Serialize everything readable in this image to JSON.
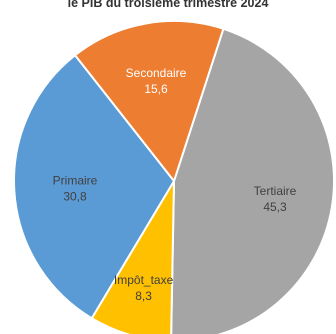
{
  "chart_data": {
    "type": "pie",
    "title": "le PIB du troisième trimestre 2024",
    "legend": "none",
    "slices": [
      {
        "name": "Tertiaire",
        "value_label": "45,3",
        "value": 45.3,
        "color": "#a5a5a5",
        "label_color": "#404040"
      },
      {
        "name": "Impôt_taxe",
        "value_label": "8,3",
        "value": 8.3,
        "color": "#ffc000",
        "label_color": "#404040"
      },
      {
        "name": "Primaire",
        "value_label": "30,8",
        "value": 30.8,
        "color": "#5b9bd5",
        "label_color": "#404040"
      },
      {
        "name": "Secondaire",
        "value_label": "15,6",
        "value": 15.6,
        "color": "#ed7d31",
        "label_color": "#ffffff"
      }
    ]
  }
}
